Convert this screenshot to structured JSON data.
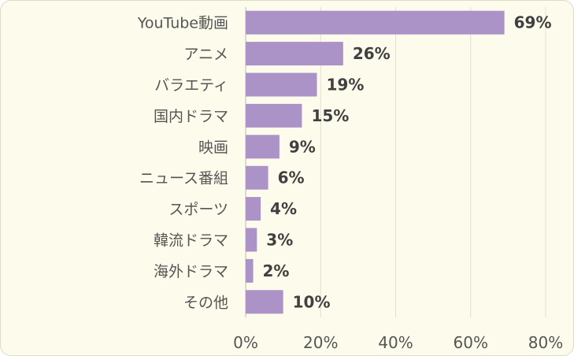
{
  "chart_data": {
    "type": "bar",
    "orientation": "horizontal",
    "categories": [
      "YouTube動画",
      "アニメ",
      "バラエティ",
      "国内ドラマ",
      "映画",
      "ニュース番組",
      "スポーツ",
      "韓流ドラマ",
      "海外ドラマ",
      "その他"
    ],
    "values": [
      69,
      26,
      19,
      15,
      9,
      6,
      4,
      3,
      2,
      10
    ],
    "value_labels": [
      "69%",
      "26%",
      "19%",
      "15%",
      "9%",
      "6%",
      "4%",
      "3%",
      "2%",
      "10%"
    ],
    "xlim": [
      0,
      80
    ],
    "x_ticks": [
      0,
      20,
      40,
      60,
      80
    ],
    "x_tick_labels": [
      "0%",
      "20%",
      "40%",
      "60%",
      "80%"
    ],
    "grid": "vertical",
    "legend": "none",
    "title": "",
    "xlabel": "",
    "ylabel": "",
    "bar_color": "#ab93c7",
    "background_color": "#fdfbeb"
  }
}
